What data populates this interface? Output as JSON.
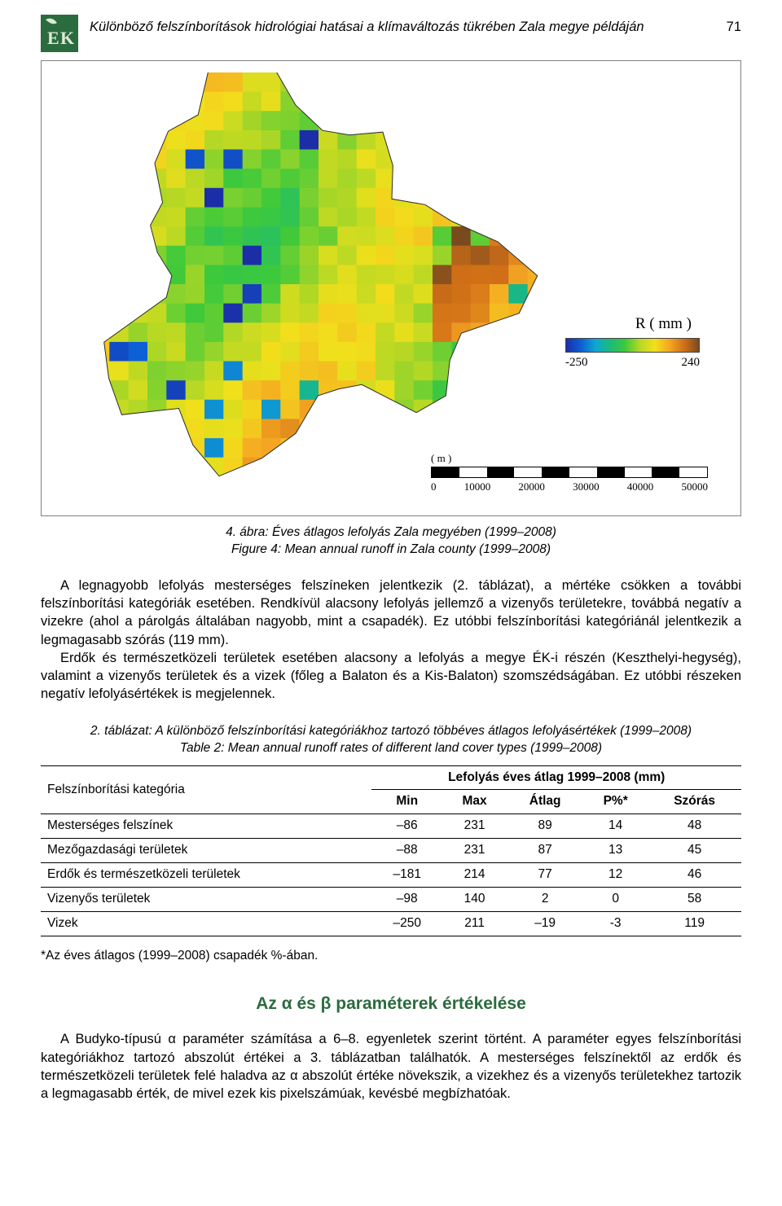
{
  "header": {
    "running_title": "Különböző felszínborítások hidrológiai hatásai a klímaváltozás tükrében Zala megye példáján",
    "page_number": "71"
  },
  "figure4": {
    "caption_hu": "4. ábra: Éves átlagos lefolyás Zala megyében (1999–2008)",
    "caption_en": "Figure 4: Mean annual runoff in Zala county (1999–2008)",
    "legend": {
      "variable": "R  ( mm )",
      "min": "-250",
      "max": "240",
      "gradient_stops": [
        "#1b2ea8",
        "#0d5fd6",
        "#0fa7d1",
        "#1bba78",
        "#3ec93b",
        "#b7d824",
        "#f2e01b",
        "#f5a723",
        "#d06f17",
        "#7a4a1f"
      ]
    },
    "scalebar": {
      "unit_label": "( m )",
      "ticks": [
        "0",
        "10000",
        "20000",
        "30000",
        "40000",
        "50000"
      ]
    },
    "map": {
      "type": "heatmap",
      "grid_cols": 24,
      "grid_rows": 22,
      "value_range": [
        -250,
        240
      ],
      "outline_color": "#2c2c2c",
      "palette_mode": "terrain",
      "seed": 7
    }
  },
  "body": {
    "p1": "A legnagyobb lefolyás mesterséges felszíneken jelentkezik (2. táblázat), a mértéke csökken a további felszínborítási kategóriák esetében. Rendkívül alacsony lefolyás jellemző a vizenyős területekre, továbbá negatív a vizekre (ahol a párolgás általában nagyobb, mint a csapadék). Ez utóbbi felszínborítási kategóriánál jelentkezik a legmagasabb szórás (119 mm).",
    "p2": "Erdők és természetközeli területek esetében alacsony a lefolyás a megye ÉK-i részén (Keszthelyi-hegység), valamint a vizenyős területek és a vizek (főleg a Balaton és a Kis-Balaton) szomszédságában. Ez utóbbi részeken negatív lefolyásértékek is megjelennek."
  },
  "table2": {
    "caption_hu": "2. táblázat: A különböző felszínborítási kategóriákhoz tartozó többéves átlagos lefolyásértékek (1999–2008)",
    "caption_en": "Table 2: Mean annual runoff rates of different land cover types (1999–2008)",
    "col_group_label": "Lefolyás éves átlag 1999–2008 (mm)",
    "rowhead_label": "Felszínborítási kategória",
    "columns": [
      "Min",
      "Max",
      "Átlag",
      "P%*",
      "Szórás"
    ],
    "rows": [
      {
        "name": "Mesterséges felszínek",
        "vals": [
          "–86",
          "231",
          "89",
          "14",
          "48"
        ]
      },
      {
        "name": "Mezőgazdasági területek",
        "vals": [
          "–88",
          "231",
          "87",
          "13",
          "45"
        ]
      },
      {
        "name": "Erdők és természetközeli területek",
        "vals": [
          "–181",
          "214",
          "77",
          "12",
          "46"
        ]
      },
      {
        "name": "Vizenyős területek",
        "vals": [
          "–98",
          "140",
          "2",
          "0",
          "58"
        ]
      },
      {
        "name": "Vizek",
        "vals": [
          "–250",
          "211",
          "–19",
          "-3",
          "119"
        ]
      }
    ],
    "footnote": "*Az éves átlagos (1999–2008) csapadék %-ában."
  },
  "section2": {
    "title": "Az α és β paraméterek értékelése",
    "title_color": "#2a6c3e",
    "p1": "A Budyko-típusú α paraméter számítása a 6–8. egyenletek szerint történt. A paraméter egyes felszínborítási kategóriákhoz tartozó abszolút értékei a 3. táblázatban találhatók. A mesterséges felszínektől az erdők és természetközeli területek felé haladva az α abszolút értéke növekszik, a vizekhez és a vizenyős területekhez tartozik a legmagasabb érték, de mivel ezek kis pixelszámúak, kevésbé megbízhatóak."
  },
  "logo": {
    "bg": "#2a6c3e",
    "letters": "EK",
    "leaf_color": "#dfe9d5"
  }
}
